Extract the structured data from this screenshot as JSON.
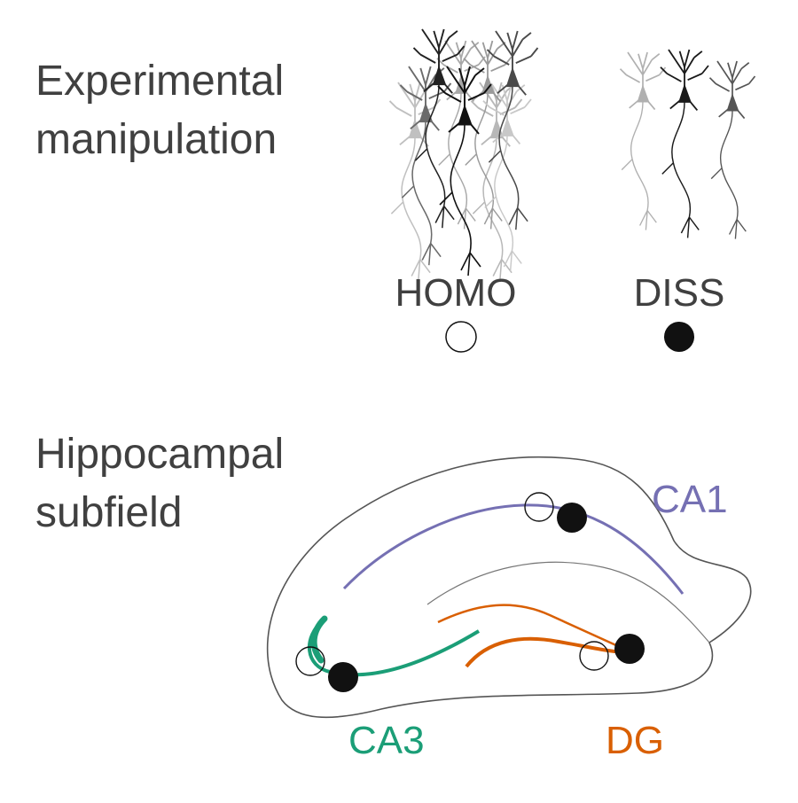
{
  "sections": {
    "manipulation": {
      "title_line1": "Experimental",
      "title_line2": "manipulation"
    },
    "subfield": {
      "title_line1": "Hippocampal",
      "title_line2": "subfield"
    }
  },
  "conditions": {
    "homo": {
      "label": "HOMO",
      "marker": "open-circle"
    },
    "diss": {
      "label": "DISS",
      "marker": "filled-circle"
    }
  },
  "regions": {
    "ca1": {
      "label": "CA1",
      "color": "#7570b3"
    },
    "ca3": {
      "label": "CA3",
      "color": "#1b9e77"
    },
    "dg": {
      "label": "DG",
      "color": "#d95f02"
    }
  },
  "colors": {
    "text": "#404040",
    "outline": "#555555",
    "marker_fill": "#111111"
  }
}
